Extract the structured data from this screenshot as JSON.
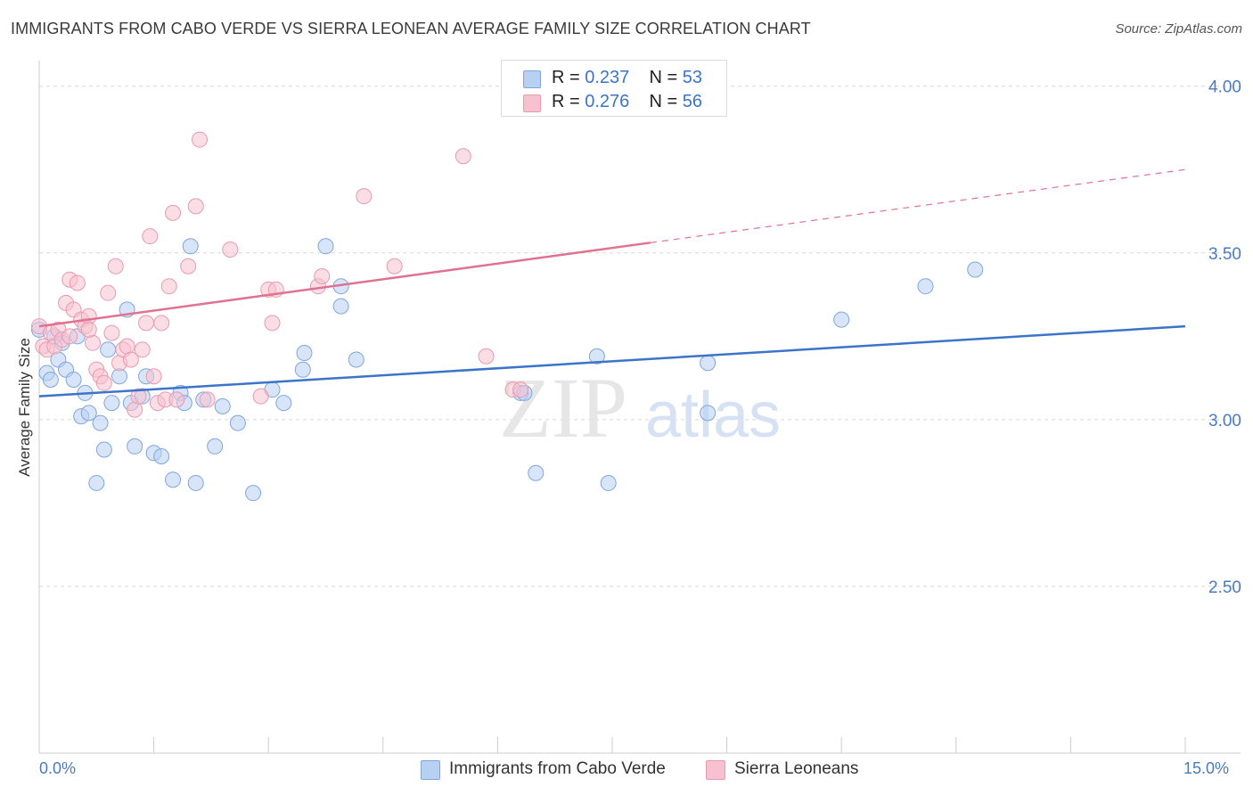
{
  "title": "IMMIGRANTS FROM CABO VERDE VS SIERRA LEONEAN AVERAGE FAMILY SIZE CORRELATION CHART",
  "source": "Source: ZipAtlas.com",
  "watermark": {
    "zip": "ZIP",
    "atlas": "atlas"
  },
  "colors": {
    "blue": "#3b74c8",
    "blue_fill": "#b8d0f2",
    "pink": "#e0718f",
    "pink_fill": "#f7c1d0",
    "grid": "#d8d8d8",
    "axis_text": "#4a7ac4"
  },
  "legend": {
    "series": [
      {
        "r_label": "R =",
        "r_value": "0.237",
        "n_label": "N =",
        "n_value": "53"
      },
      {
        "r_label": "R =",
        "r_value": "0.276",
        "n_label": "N =",
        "n_value": "56"
      }
    ]
  },
  "bottom_legend": [
    "Immigrants from Cabo Verde",
    "Sierra Leoneans"
  ],
  "chart_data": {
    "type": "scatter",
    "title": "IMMIGRANTS FROM CABO VERDE VS SIERRA LEONEAN AVERAGE FAMILY SIZE CORRELATION CHART",
    "xlabel": "",
    "ylabel": "Average Family Size",
    "xlim": [
      0,
      15
    ],
    "ylim": [
      2.0,
      4.05
    ],
    "x_tick_labels": [
      "0.0%",
      "15.0%"
    ],
    "y_ticks": [
      2.5,
      3.0,
      3.5,
      4.0
    ],
    "y_tick_labels": [
      "2.50",
      "3.00",
      "3.50",
      "4.00"
    ],
    "grid": true,
    "legend_position": "top-center",
    "series": [
      {
        "name": "Immigrants from Cabo Verde",
        "color": "#3b74c8",
        "points": [
          [
            0.0,
            3.27
          ],
          [
            0.1,
            3.14
          ],
          [
            0.15,
            3.12
          ],
          [
            0.25,
            3.18
          ],
          [
            0.3,
            3.23
          ],
          [
            0.35,
            3.15
          ],
          [
            0.45,
            3.12
          ],
          [
            0.5,
            3.25
          ],
          [
            0.55,
            3.01
          ],
          [
            0.6,
            3.08
          ],
          [
            0.65,
            3.02
          ],
          [
            0.75,
            2.81
          ],
          [
            0.8,
            2.99
          ],
          [
            0.85,
            2.91
          ],
          [
            0.9,
            3.21
          ],
          [
            0.95,
            3.05
          ],
          [
            1.05,
            3.13
          ],
          [
            1.15,
            3.33
          ],
          [
            1.2,
            3.05
          ],
          [
            1.25,
            2.92
          ],
          [
            1.35,
            3.07
          ],
          [
            1.4,
            3.13
          ],
          [
            1.5,
            2.9
          ],
          [
            1.6,
            2.89
          ],
          [
            1.75,
            2.82
          ],
          [
            1.85,
            3.08
          ],
          [
            1.9,
            3.05
          ],
          [
            1.98,
            3.52
          ],
          [
            2.05,
            2.81
          ],
          [
            2.15,
            3.06
          ],
          [
            2.3,
            2.92
          ],
          [
            2.4,
            3.04
          ],
          [
            2.6,
            2.99
          ],
          [
            2.8,
            2.78
          ],
          [
            3.05,
            3.09
          ],
          [
            3.2,
            3.05
          ],
          [
            3.45,
            3.15
          ],
          [
            3.47,
            3.2
          ],
          [
            3.75,
            3.52
          ],
          [
            3.95,
            3.4
          ],
          [
            3.95,
            3.34
          ],
          [
            4.15,
            3.18
          ],
          [
            6.3,
            3.08
          ],
          [
            6.35,
            3.08
          ],
          [
            6.5,
            2.84
          ],
          [
            7.3,
            3.19
          ],
          [
            7.45,
            2.81
          ],
          [
            8.75,
            3.17
          ],
          [
            8.75,
            3.02
          ],
          [
            10.5,
            3.3
          ],
          [
            11.6,
            3.4
          ],
          [
            12.25,
            3.45
          ],
          [
            0.2,
            3.25
          ]
        ],
        "trend": {
          "x0": 0.0,
          "y0": 3.07,
          "x1": 15.0,
          "y1": 3.28
        }
      },
      {
        "name": "Sierra Leoneans",
        "color": "#e0718f",
        "points": [
          [
            0.0,
            3.28
          ],
          [
            0.05,
            3.22
          ],
          [
            0.1,
            3.21
          ],
          [
            0.15,
            3.26
          ],
          [
            0.2,
            3.22
          ],
          [
            0.25,
            3.27
          ],
          [
            0.3,
            3.24
          ],
          [
            0.35,
            3.35
          ],
          [
            0.4,
            3.42
          ],
          [
            0.45,
            3.33
          ],
          [
            0.5,
            3.41
          ],
          [
            0.55,
            3.3
          ],
          [
            0.6,
            3.28
          ],
          [
            0.65,
            3.31
          ],
          [
            0.7,
            3.23
          ],
          [
            0.75,
            3.15
          ],
          [
            0.8,
            3.13
          ],
          [
            0.85,
            3.11
          ],
          [
            0.9,
            3.38
          ],
          [
            0.95,
            3.26
          ],
          [
            1.0,
            3.46
          ],
          [
            1.05,
            3.17
          ],
          [
            1.1,
            3.21
          ],
          [
            1.15,
            3.22
          ],
          [
            1.2,
            3.18
          ],
          [
            1.25,
            3.03
          ],
          [
            1.3,
            3.07
          ],
          [
            1.35,
            3.21
          ],
          [
            1.4,
            3.29
          ],
          [
            1.45,
            3.55
          ],
          [
            1.5,
            3.13
          ],
          [
            1.55,
            3.05
          ],
          [
            1.6,
            3.29
          ],
          [
            1.65,
            3.06
          ],
          [
            1.7,
            3.4
          ],
          [
            1.75,
            3.62
          ],
          [
            1.8,
            3.06
          ],
          [
            1.95,
            3.46
          ],
          [
            2.05,
            3.64
          ],
          [
            2.1,
            3.84
          ],
          [
            2.2,
            3.06
          ],
          [
            2.5,
            3.51
          ],
          [
            2.9,
            3.07
          ],
          [
            3.0,
            3.39
          ],
          [
            3.05,
            3.29
          ],
          [
            3.1,
            3.39
          ],
          [
            3.65,
            3.4
          ],
          [
            3.7,
            3.43
          ],
          [
            4.25,
            3.67
          ],
          [
            4.65,
            3.46
          ],
          [
            5.55,
            3.79
          ],
          [
            5.85,
            3.19
          ],
          [
            6.2,
            3.09
          ],
          [
            6.3,
            3.09
          ],
          [
            0.4,
            3.25
          ],
          [
            0.65,
            3.27
          ]
        ],
        "trend": {
          "x0": 0.0,
          "y0": 3.28,
          "x1": 15.0,
          "y1": 3.75,
          "solid_until_x": 8.0
        }
      }
    ]
  }
}
